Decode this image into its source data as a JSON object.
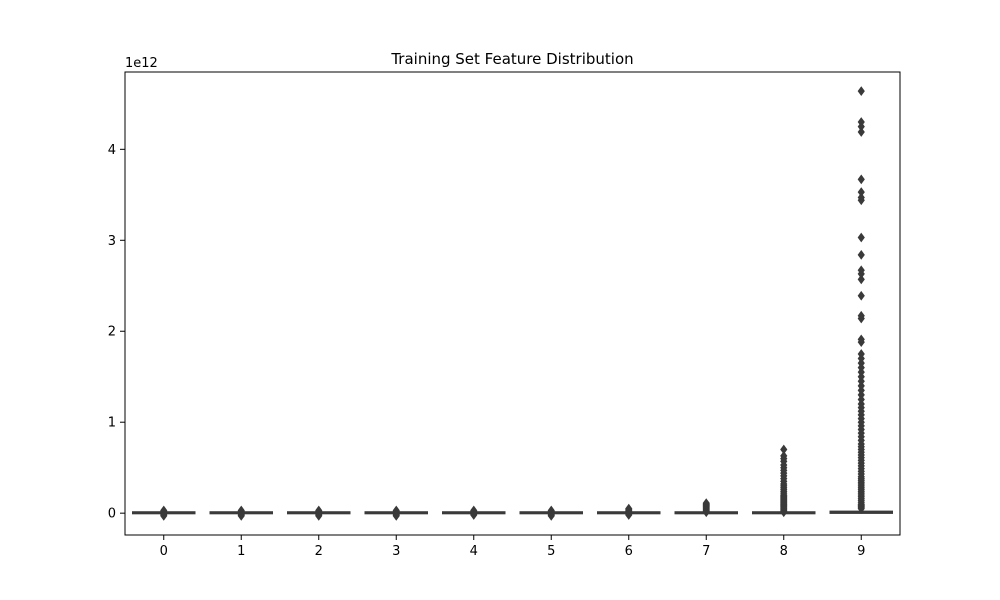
{
  "chart_data": {
    "type": "box",
    "title": "Training Set Feature Distribution",
    "xlabel": "",
    "ylabel": "",
    "y_offset_label": "1e12",
    "categories": [
      "0",
      "1",
      "2",
      "3",
      "4",
      "5",
      "6",
      "7",
      "8",
      "9"
    ],
    "yticks": [
      0,
      1,
      2,
      3,
      4
    ],
    "ylim": [
      -0.24,
      4.85
    ],
    "grid": false,
    "legend": "none",
    "colors": {
      "box": "#3a3a3a",
      "axis": "#000000",
      "background": "#ffffff"
    },
    "series": [
      {
        "category": "0",
        "q1": 0,
        "median": 0,
        "q3": 0.003,
        "whisker_low": -0.01,
        "whisker_high": 0.01,
        "outliers": [
          0.01,
          0.02,
          0.03,
          -0.01,
          -0.02,
          -0.03
        ]
      },
      {
        "category": "1",
        "q1": 0,
        "median": 0,
        "q3": 0.003,
        "whisker_low": -0.01,
        "whisker_high": 0.01,
        "outliers": [
          0.01,
          0.02,
          0.03,
          -0.01,
          -0.02,
          -0.03
        ]
      },
      {
        "category": "2",
        "q1": 0,
        "median": 0,
        "q3": 0.003,
        "whisker_low": -0.01,
        "whisker_high": 0.01,
        "outliers": [
          0.01,
          0.02,
          0.03,
          -0.01,
          -0.02,
          -0.03
        ]
      },
      {
        "category": "3",
        "q1": 0,
        "median": 0,
        "q3": 0.003,
        "whisker_low": -0.01,
        "whisker_high": 0.01,
        "outliers": [
          0.01,
          0.02,
          0.03,
          -0.01,
          -0.02,
          -0.03
        ]
      },
      {
        "category": "4",
        "q1": 0,
        "median": 0,
        "q3": 0.003,
        "whisker_low": -0.01,
        "whisker_high": 0.01,
        "outliers": [
          0.01,
          0.02,
          0.03,
          -0.01,
          -0.02
        ]
      },
      {
        "category": "5",
        "q1": 0,
        "median": 0,
        "q3": 0.003,
        "whisker_low": -0.01,
        "whisker_high": 0.01,
        "outliers": [
          0.01,
          0.02,
          0.03,
          -0.01,
          -0.02,
          -0.03
        ]
      },
      {
        "category": "6",
        "q1": 0,
        "median": 0,
        "q3": 0.003,
        "whisker_low": -0.01,
        "whisker_high": 0.01,
        "outliers": [
          0.01,
          0.02,
          0.03,
          0.04,
          0.05,
          -0.01,
          -0.02
        ]
      },
      {
        "category": "7",
        "q1": 0,
        "median": 0,
        "q3": 0.004,
        "whisker_low": -0.01,
        "whisker_high": 0.01,
        "outliers": [
          0.01,
          0.02,
          0.03,
          0.04,
          0.05,
          0.06,
          0.07,
          0.08,
          0.09,
          0.1,
          0.11
        ]
      },
      {
        "category": "8",
        "q1": 0,
        "median": 0,
        "q3": 0.005,
        "whisker_low": -0.003,
        "whisker_high": 0.012,
        "outliers": [
          0.01,
          0.02,
          0.03,
          0.04,
          0.05,
          0.06,
          0.07,
          0.08,
          0.09,
          0.1,
          0.11,
          0.12,
          0.13,
          0.14,
          0.15,
          0.16,
          0.17,
          0.18,
          0.19,
          0.2,
          0.22,
          0.24,
          0.26,
          0.28,
          0.3,
          0.32,
          0.35,
          0.38,
          0.41,
          0.44,
          0.47,
          0.5,
          0.53,
          0.57,
          0.6,
          0.63,
          0.7
        ]
      },
      {
        "category": "9",
        "q1": 0,
        "median": 0.01,
        "q3": 0.02,
        "whisker_low": -0.005,
        "whisker_high": 0.04,
        "outliers": [
          0.05,
          0.06,
          0.07,
          0.08,
          0.09,
          0.1,
          0.12,
          0.14,
          0.16,
          0.18,
          0.2,
          0.22,
          0.24,
          0.26,
          0.28,
          0.3,
          0.32,
          0.34,
          0.36,
          0.38,
          0.4,
          0.43,
          0.46,
          0.49,
          0.52,
          0.55,
          0.58,
          0.61,
          0.64,
          0.67,
          0.7,
          0.73,
          0.76,
          0.8,
          0.84,
          0.88,
          0.92,
          0.96,
          1.0,
          1.04,
          1.08,
          1.12,
          1.16,
          1.2,
          1.25,
          1.3,
          1.35,
          1.4,
          1.45,
          1.5,
          1.55,
          1.6,
          1.65,
          1.7,
          1.75,
          1.88,
          1.91,
          2.14,
          2.17,
          2.39,
          2.57,
          2.63,
          2.67,
          2.84,
          3.03,
          3.44,
          3.47,
          3.53,
          3.67,
          4.19,
          4.25,
          4.3,
          4.64
        ]
      }
    ]
  }
}
